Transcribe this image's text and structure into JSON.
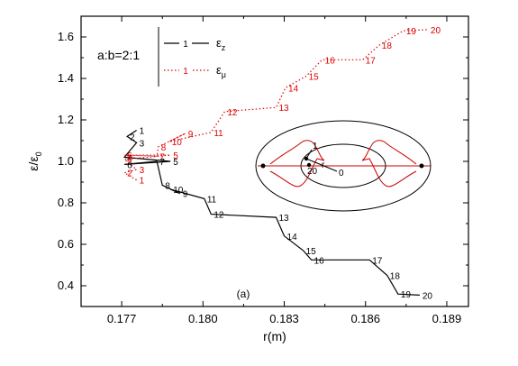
{
  "chart_data": {
    "type": "line",
    "panel_label": "(a)",
    "xlabel": "r(m)",
    "ylabel": "ε/ε",
    "ylabel_sub": "0",
    "xlim": [
      0.1755,
      0.1898
    ],
    "ylim": [
      0.3,
      1.7
    ],
    "xticks": [
      0.177,
      0.18,
      0.183,
      0.186,
      0.189
    ],
    "xtick_labels": [
      "0.177",
      "0.180",
      "0.183",
      "0.186",
      "0.189"
    ],
    "yticks": [
      0.4,
      0.6,
      0.8,
      1.0,
      1.2,
      1.4,
      1.6
    ],
    "ytick_labels": [
      "0.4",
      "0.6",
      "0.8",
      "1.0",
      "1.2",
      "1.4",
      "1.6"
    ],
    "grid": false,
    "legend_placement": "top-left",
    "aspect_label": "a:b=2:1",
    "series": [
      {
        "name": "ε",
        "name_sub": "z",
        "color": "#000000",
        "style": "solid",
        "marker_label": "1",
        "points": [
          {
            "label": "1",
            "x": 0.17755,
            "y": 1.15
          },
          {
            "label": "2",
            "x": 0.1772,
            "y": 1.12
          },
          {
            "label": "3",
            "x": 0.17755,
            "y": 1.09
          },
          {
            "label": "4",
            "x": 0.1771,
            "y": 1.02
          },
          {
            "label": "5",
            "x": 0.1788,
            "y": 1.0
          },
          {
            "label": "6",
            "x": 0.1771,
            "y": 0.985
          },
          {
            "label": "7",
            "x": 0.1783,
            "y": 1.0
          },
          {
            "label": "8",
            "x": 0.1785,
            "y": 0.885
          },
          {
            "label": "9",
            "x": 0.17915,
            "y": 0.845
          },
          {
            "label": "10",
            "x": 0.1788,
            "y": 0.865
          },
          {
            "label": "11",
            "x": 0.18005,
            "y": 0.82
          },
          {
            "label": "12",
            "x": 0.1803,
            "y": 0.745
          },
          {
            "label": "13",
            "x": 0.1827,
            "y": 0.73
          },
          {
            "label": "14",
            "x": 0.183,
            "y": 0.64
          },
          {
            "label": "15",
            "x": 0.1837,
            "y": 0.57
          },
          {
            "label": "16",
            "x": 0.184,
            "y": 0.525
          },
          {
            "label": "17",
            "x": 0.18615,
            "y": 0.525
          },
          {
            "label": "18",
            "x": 0.1868,
            "y": 0.45
          },
          {
            "label": "19",
            "x": 0.1872,
            "y": 0.36
          },
          {
            "label": "20",
            "x": 0.188,
            "y": 0.355
          }
        ]
      },
      {
        "name": "ε",
        "name_sub": "μ",
        "color": "#dd0000",
        "style": "dotted",
        "marker_label": "1",
        "points": [
          {
            "label": "1",
            "x": 0.17755,
            "y": 0.91
          },
          {
            "label": "2",
            "x": 0.1771,
            "y": 0.945
          },
          {
            "label": "3",
            "x": 0.17755,
            "y": 0.96
          },
          {
            "label": "4",
            "x": 0.1771,
            "y": 1.01
          },
          {
            "label": "5",
            "x": 0.1788,
            "y": 1.03
          },
          {
            "label": "6",
            "x": 0.1771,
            "y": 1.03
          },
          {
            "label": "7",
            "x": 0.1783,
            "y": 1.025
          },
          {
            "label": "8",
            "x": 0.17835,
            "y": 1.07
          },
          {
            "label": "9",
            "x": 0.17935,
            "y": 1.135
          },
          {
            "label": "10",
            "x": 0.17875,
            "y": 1.095
          },
          {
            "label": "11",
            "x": 0.1803,
            "y": 1.14
          },
          {
            "label": "12",
            "x": 0.1808,
            "y": 1.24
          },
          {
            "label": "13",
            "x": 0.1827,
            "y": 1.26
          },
          {
            "label": "14",
            "x": 0.18305,
            "y": 1.355
          },
          {
            "label": "15",
            "x": 0.1838,
            "y": 1.41
          },
          {
            "label": "16",
            "x": 0.1844,
            "y": 1.49
          },
          {
            "label": "17",
            "x": 0.1859,
            "y": 1.49
          },
          {
            "label": "18",
            "x": 0.1865,
            "y": 1.56
          },
          {
            "label": "19",
            "x": 0.1874,
            "y": 1.63
          },
          {
            "label": "20",
            "x": 0.1883,
            "y": 1.635
          }
        ]
      }
    ],
    "inset": {
      "labels": [
        "1",
        "20",
        "r",
        "0"
      ],
      "ellipse_ratio": "2:1"
    }
  }
}
